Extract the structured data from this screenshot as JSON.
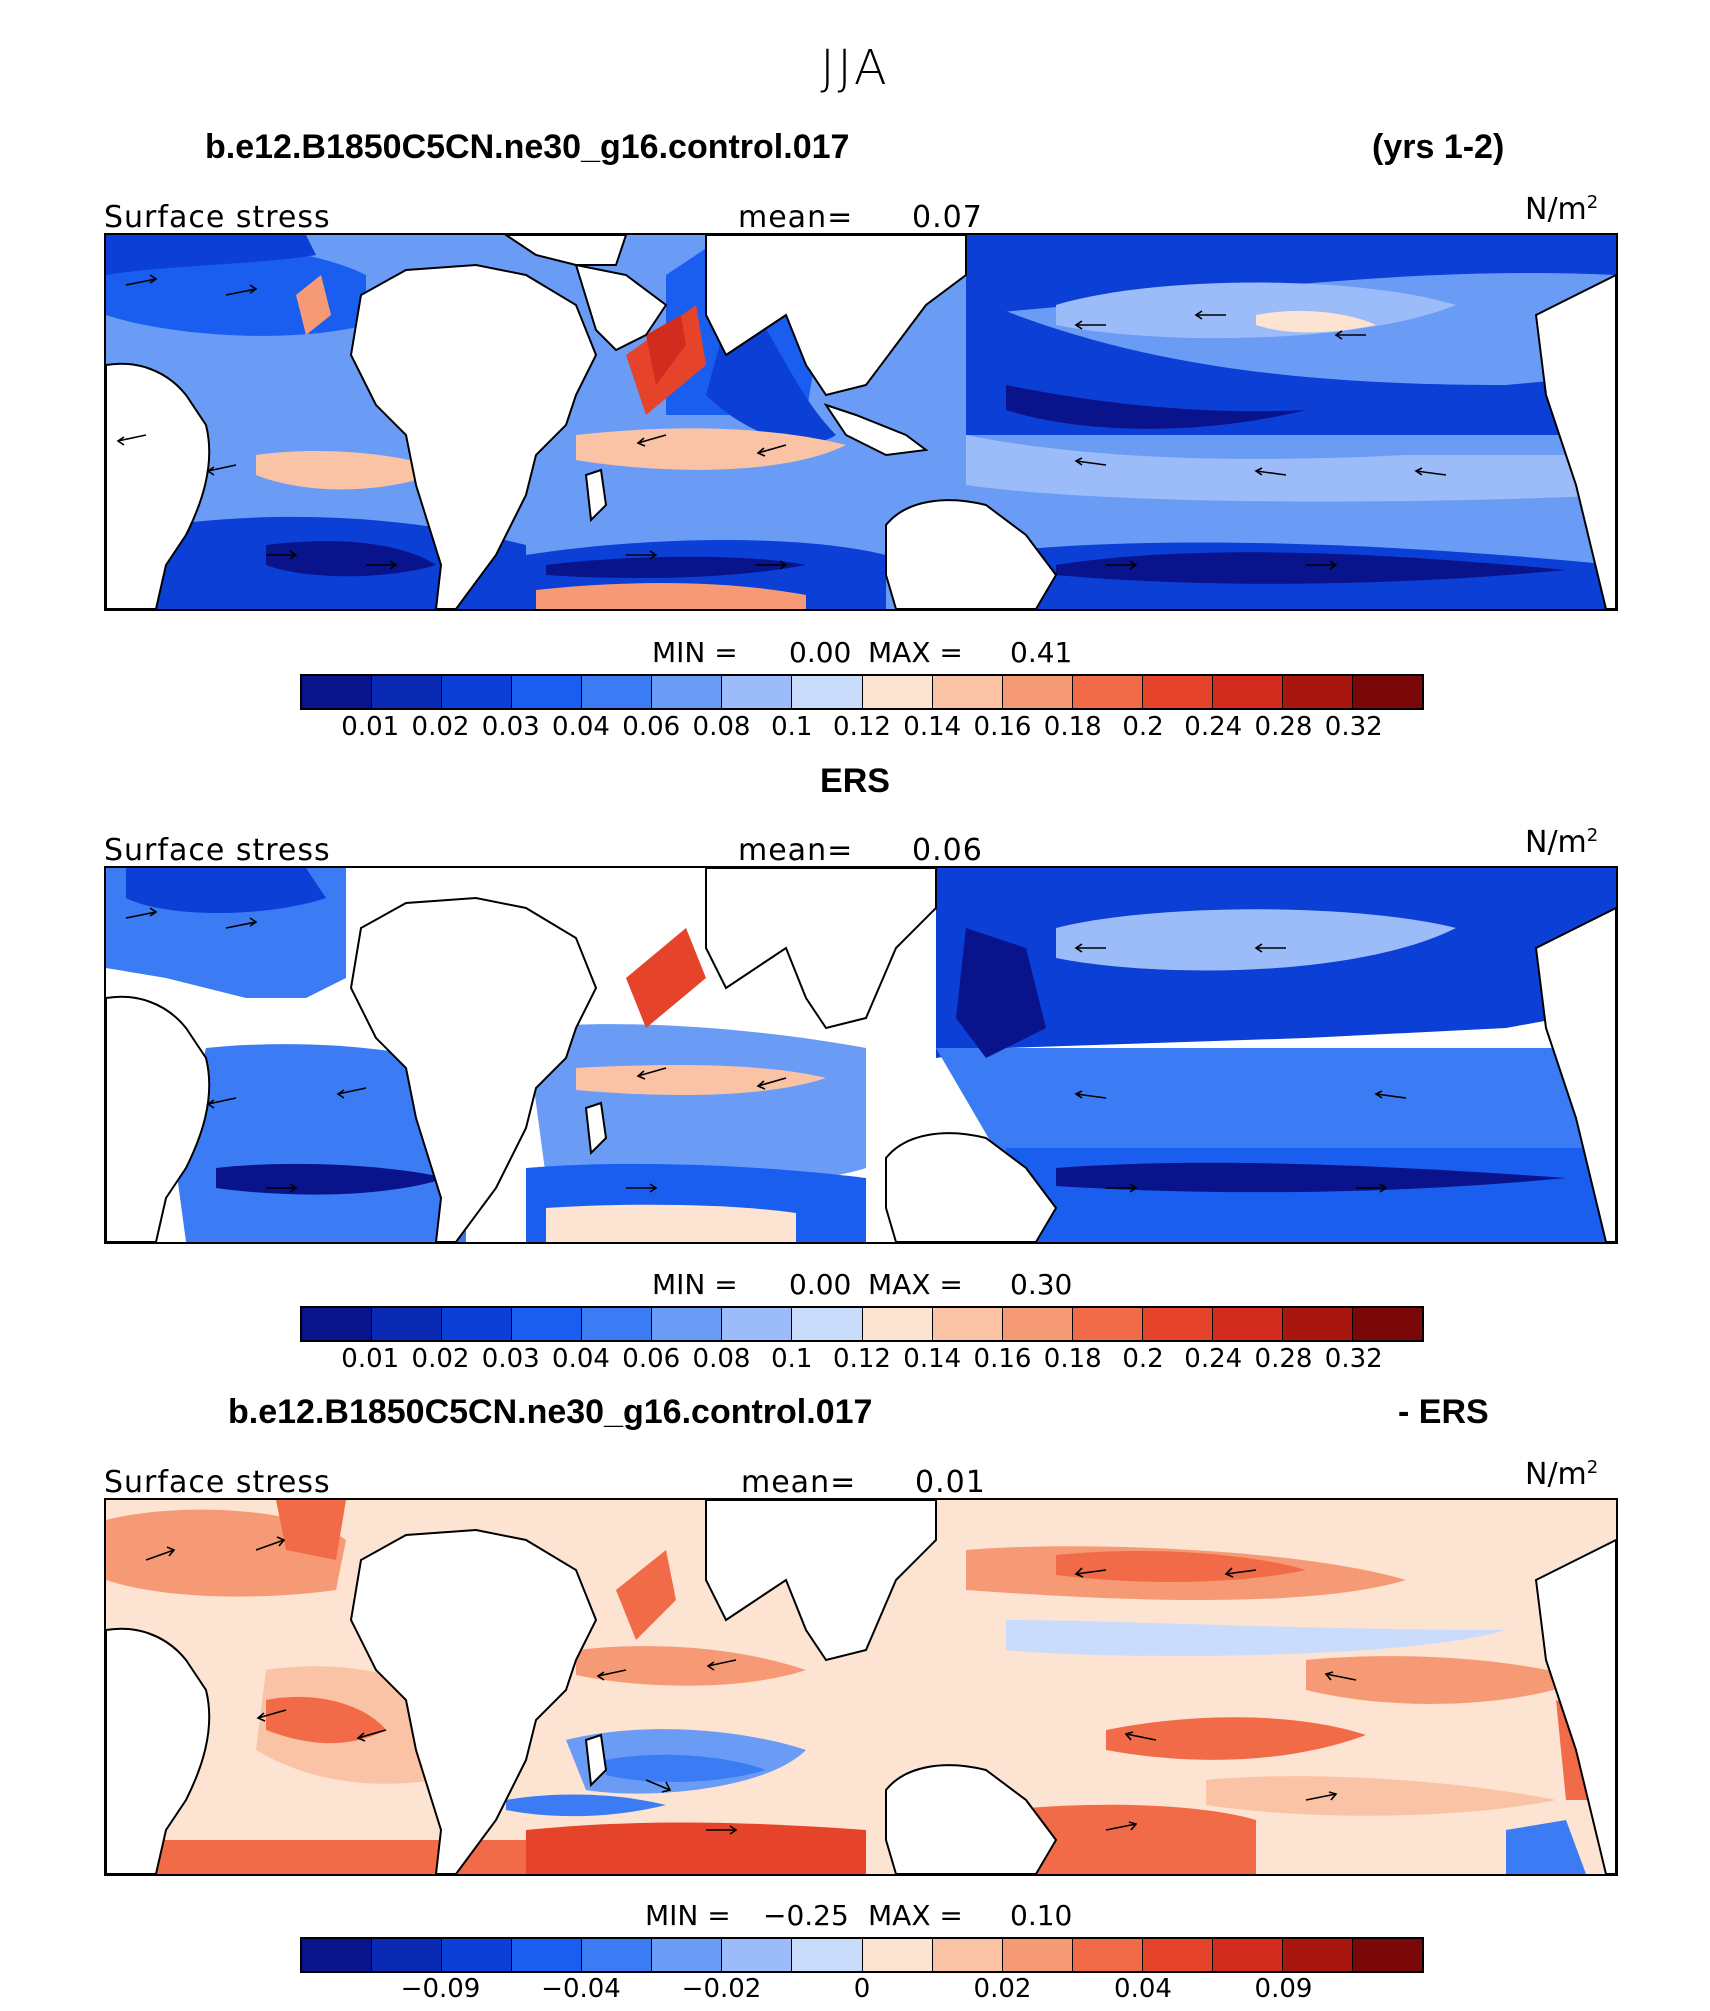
{
  "figure": {
    "season": "JJA"
  },
  "panels": [
    {
      "heading_left": "b.e12.B1850C5CN.ne30_g16.control.017",
      "heading_right": "(yrs 1-2)",
      "variable": "Surface stress",
      "mean_label": "mean=",
      "mean_value": "0.07",
      "unit": "N/m",
      "unit_exp": "2",
      "min_label": "MIN =",
      "min_value": "0.00",
      "max_label": "MAX =",
      "max_value": "0.41",
      "colorbar_ticks": [
        "0.01",
        "0.02",
        "0.03",
        "0.04",
        "0.06",
        "0.08",
        "0.1",
        "0.12",
        "0.14",
        "0.16",
        "0.18",
        "0.2",
        "0.24",
        "0.28",
        "0.32"
      ]
    },
    {
      "heading_center": "ERS",
      "variable": "Surface stress",
      "mean_label": "mean=",
      "mean_value": "0.06",
      "unit": "N/m",
      "unit_exp": "2",
      "min_label": "MIN =",
      "min_value": "0.00",
      "max_label": "MAX =",
      "max_value": "0.30",
      "colorbar_ticks": [
        "0.01",
        "0.02",
        "0.03",
        "0.04",
        "0.06",
        "0.08",
        "0.1",
        "0.12",
        "0.14",
        "0.16",
        "0.18",
        "0.2",
        "0.24",
        "0.28",
        "0.32"
      ]
    },
    {
      "heading_left": "b.e12.B1850C5CN.ne30_g16.control.017",
      "heading_right": "- ERS",
      "variable": "Surface stress",
      "mean_label": "mean=",
      "mean_value": "0.01",
      "unit": "N/m",
      "unit_exp": "2",
      "min_label": "MIN =",
      "min_value": "−0.25",
      "max_label": "MAX =",
      "max_value": "0.10",
      "colorbar_ticks": [
        "−0.09",
        "−0.04",
        "−0.02",
        "0",
        "0.02",
        "0.04",
        "0.09"
      ]
    }
  ],
  "colors": {
    "abs_scale": [
      "#08138c",
      "#0a2ab4",
      "#0b3fd6",
      "#1a5ef0",
      "#3b7cf4",
      "#6a9cf6",
      "#9bbcf8",
      "#c9dcfb",
      "#fde3d2",
      "#fbc3a6",
      "#f69a76",
      "#f26b48",
      "#e6442a",
      "#d12c1e",
      "#a8160f",
      "#7a0808"
    ],
    "diff_scale": [
      "#08138c",
      "#0a2ab4",
      "#0b3fd6",
      "#1a5ef0",
      "#3b7cf4",
      "#6a9cf6",
      "#9bbcf8",
      "#c9dcfb",
      "#fde3d2",
      "#fbc3a6",
      "#f69a76",
      "#f26b48",
      "#e6442a",
      "#d12c1e",
      "#a8160f",
      "#7a0808"
    ],
    "land": "#ffffff",
    "coast": "#000000"
  }
}
